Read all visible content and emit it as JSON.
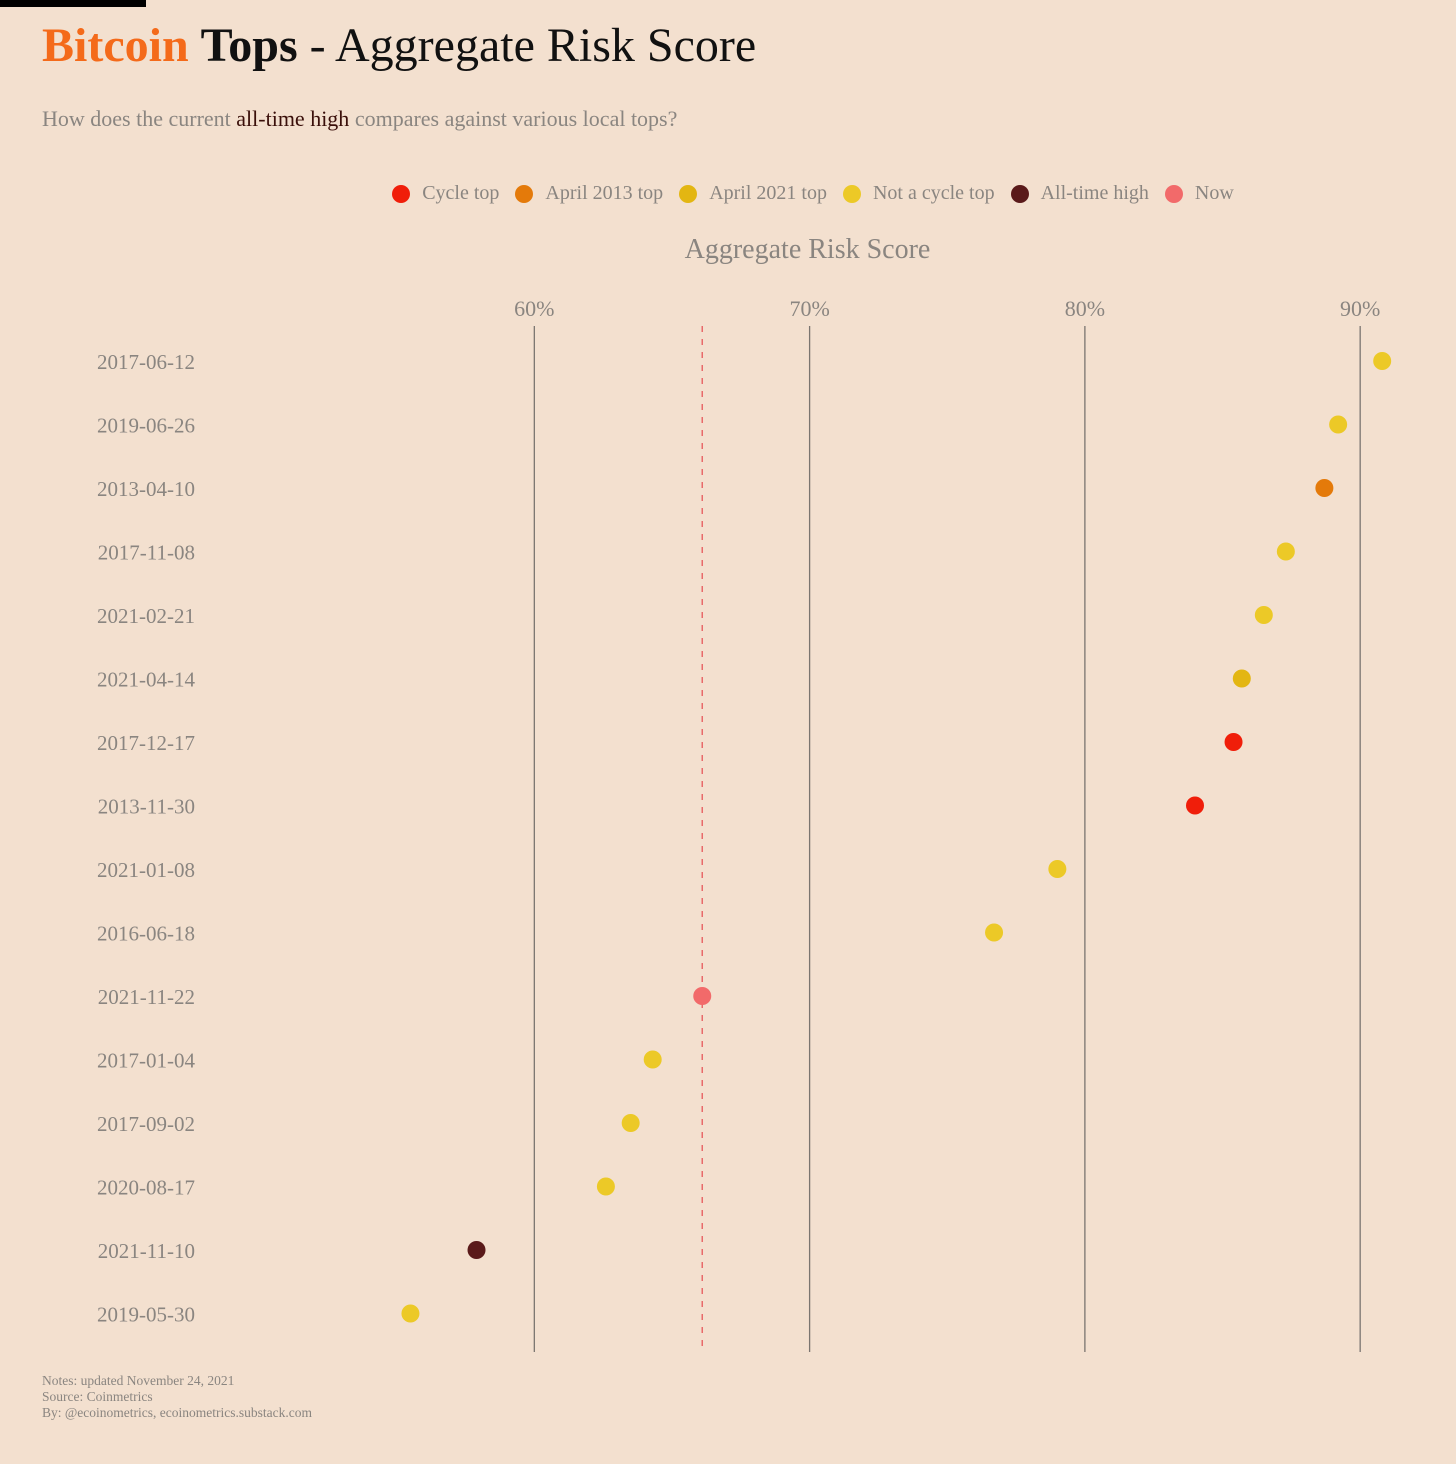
{
  "header": {
    "title_brand": "Bitcoin",
    "title_bold": "Tops",
    "title_rest": " - Aggregate Risk Score",
    "subtitle_pre": "How does the current ",
    "subtitle_highlight": "all-time high",
    "subtitle_post": " compares against various local tops?"
  },
  "legend": [
    {
      "label": "Cycle top",
      "color": "#f01e0a"
    },
    {
      "label": "April 2013 top",
      "color": "#e47a0a"
    },
    {
      "label": "April 2021 top",
      "color": "#e3b612"
    },
    {
      "label": "Not a cycle top",
      "color": "#ecc927"
    },
    {
      "label": "All-time high",
      "color": "#5a1a1a"
    },
    {
      "label": "Now",
      "color": "#f26a6a"
    }
  ],
  "chart_data": {
    "type": "scatter",
    "xlabel": "Aggregate Risk Score",
    "xlim": [
      48.4,
      92.9
    ],
    "xticks": [
      60,
      70,
      80,
      90
    ],
    "xtick_labels": [
      "60%",
      "70%",
      "80%",
      "90%"
    ],
    "reference_line": {
      "x": 66.1,
      "style": "dashed",
      "color": "#e86a6a"
    },
    "grid": "vertical",
    "points": [
      {
        "date": "2017-06-12",
        "value": 90.8,
        "category": "Not a cycle top"
      },
      {
        "date": "2019-06-26",
        "value": 89.2,
        "category": "Not a cycle top"
      },
      {
        "date": "2013-04-10",
        "value": 88.7,
        "category": "April 2013 top"
      },
      {
        "date": "2017-11-08",
        "value": 87.3,
        "category": "Not a cycle top"
      },
      {
        "date": "2021-02-21",
        "value": 86.5,
        "category": "Not a cycle top"
      },
      {
        "date": "2021-04-14",
        "value": 85.7,
        "category": "April 2021 top"
      },
      {
        "date": "2017-12-17",
        "value": 85.4,
        "category": "Cycle top"
      },
      {
        "date": "2013-11-30",
        "value": 84.0,
        "category": "Cycle top"
      },
      {
        "date": "2021-01-08",
        "value": 79.0,
        "category": "Not a cycle top"
      },
      {
        "date": "2016-06-18",
        "value": 76.7,
        "category": "Not a cycle top"
      },
      {
        "date": "2021-11-22",
        "value": 66.1,
        "category": "Now"
      },
      {
        "date": "2017-01-04",
        "value": 64.3,
        "category": "Not a cycle top"
      },
      {
        "date": "2017-09-02",
        "value": 63.5,
        "category": "Not a cycle top"
      },
      {
        "date": "2020-08-17",
        "value": 62.6,
        "category": "Not a cycle top"
      },
      {
        "date": "2021-11-10",
        "value": 57.9,
        "category": "All-time high"
      },
      {
        "date": "2019-05-30",
        "value": 55.5,
        "category": "Not a cycle top"
      }
    ]
  },
  "notes": {
    "line1": "Notes: updated November 24, 2021",
    "line2": "Source: Coinmetrics",
    "line3": "By: @ecoinometrics, ecoinometrics.substack.com"
  }
}
